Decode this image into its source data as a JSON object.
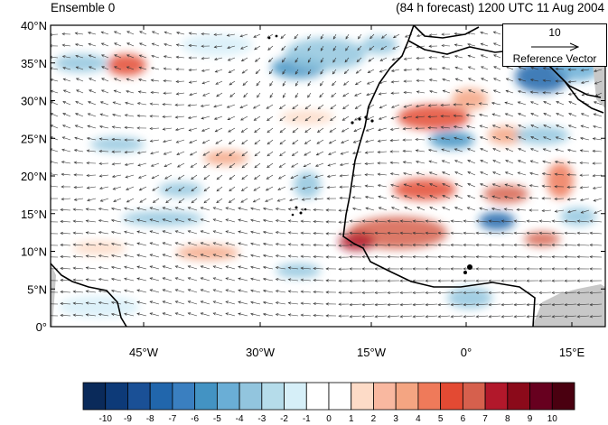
{
  "header": {
    "left_title": "Ensemble 0",
    "right_title": "(84 h forecast) 1200 UTC 11 Aug 2004"
  },
  "map": {
    "lat_labels": [
      "40°N",
      "35°N",
      "30°N",
      "25°N",
      "20°N",
      "15°N",
      "10°N",
      "5°N",
      "0°"
    ],
    "lon_labels": [
      "45°W",
      "30°W",
      "15°W",
      "0°",
      "15°E"
    ],
    "lat_range": [
      0,
      40
    ],
    "colors": {
      "land_gray": "#c8c8c8",
      "coast": "#000000"
    }
  },
  "reference_vector": {
    "magnitude": "10",
    "label": "Reference Vector"
  },
  "colorbar": {
    "labels": [
      "-10",
      "-9",
      "-8",
      "-7",
      "-6",
      "-5",
      "-4",
      "-3",
      "-2",
      "-1",
      "0",
      "1",
      "2",
      "3",
      "4",
      "5",
      "6",
      "7",
      "8",
      "9",
      "10"
    ],
    "colors": [
      "#0a2a5a",
      "#0d3a78",
      "#1a5096",
      "#2166ac",
      "#3a7fc0",
      "#4393c3",
      "#6aaed6",
      "#92c5de",
      "#b5dcea",
      "#d6eff8",
      "#ffffff",
      "#ffffff",
      "#fddbc7",
      "#f9b8a0",
      "#f4a582",
      "#ef7a5a",
      "#e34a33",
      "#d6604d",
      "#b2182b",
      "#8b0a1a",
      "#67001f",
      "#4a0010"
    ]
  }
}
